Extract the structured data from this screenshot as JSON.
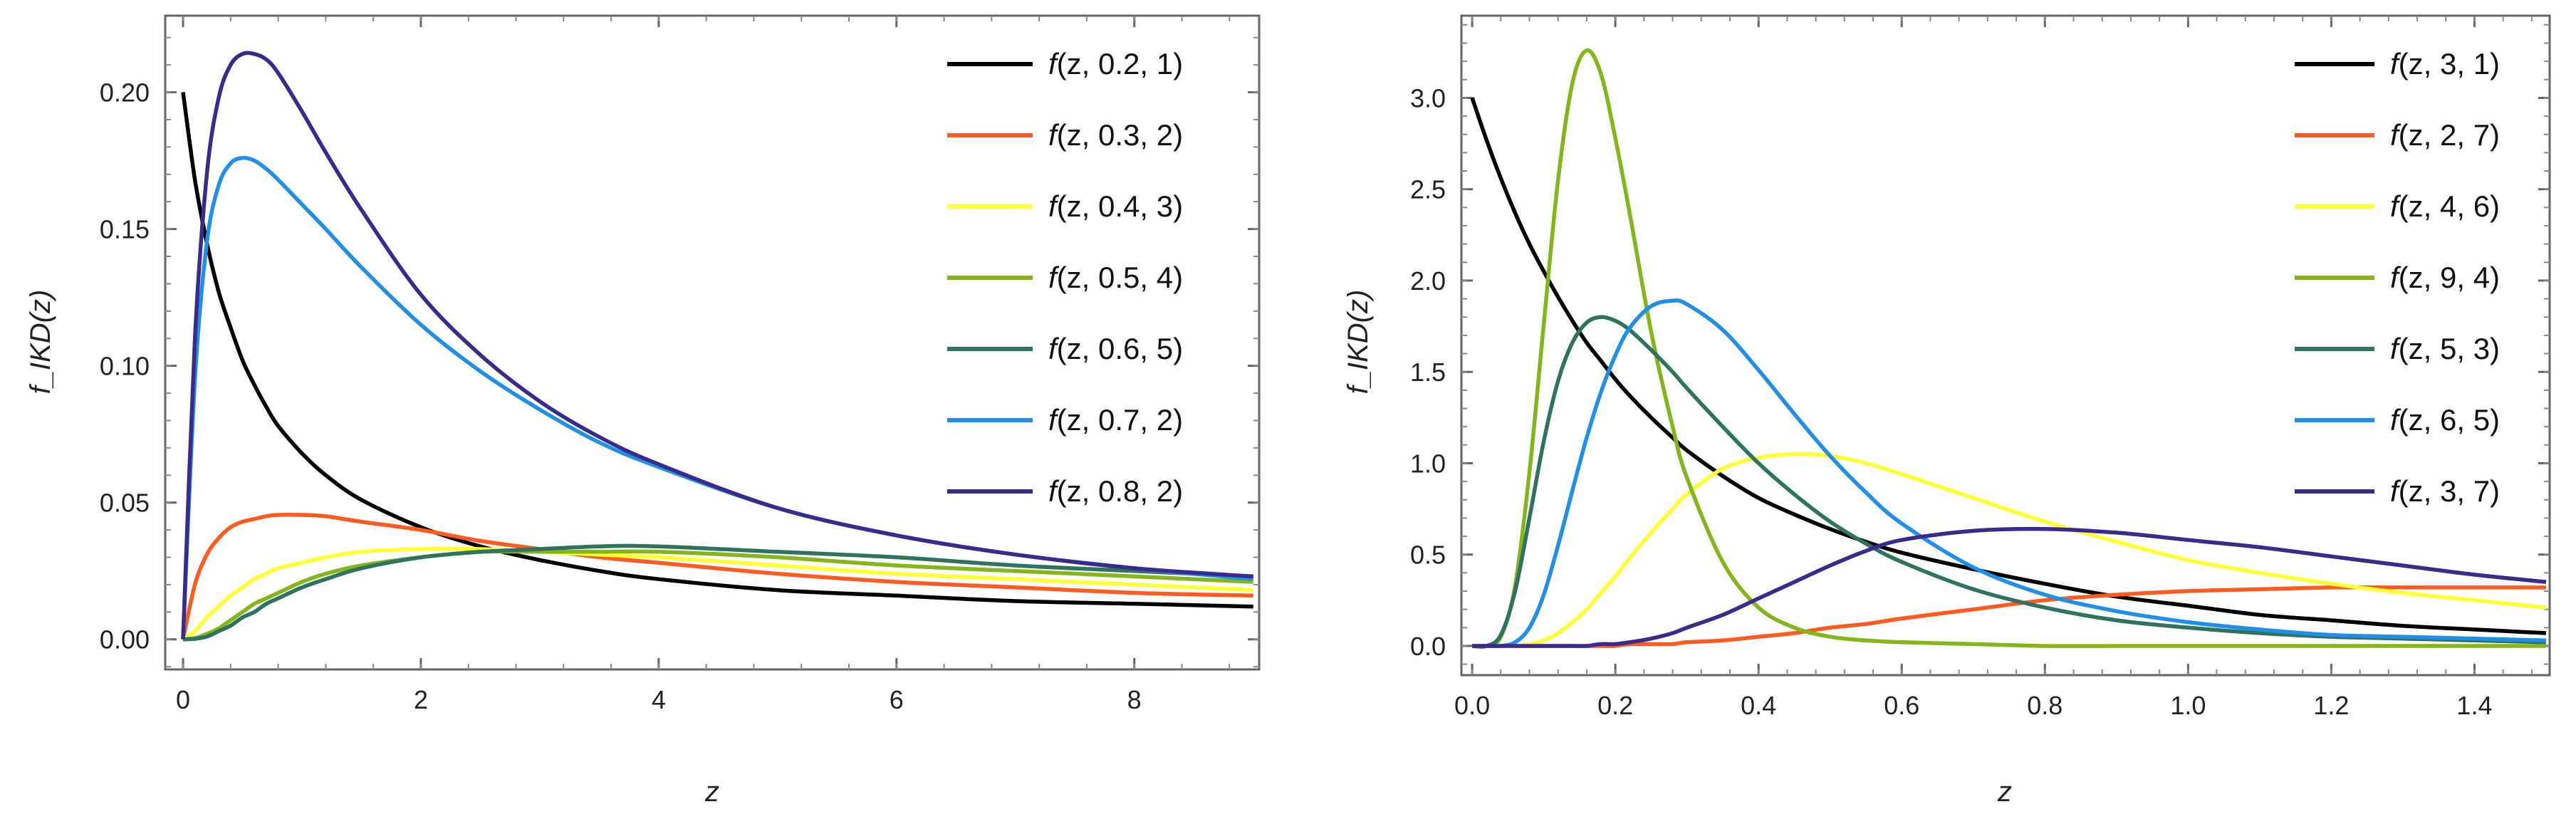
{
  "chart_data": [
    {
      "type": "line",
      "title": "",
      "xlabel": "z",
      "ylabel": "f_IKD(z)",
      "xlim": [
        -0.15,
        9.05
      ],
      "ylim": [
        -0.011,
        0.228
      ],
      "xticks": [
        0,
        2,
        4,
        6,
        8
      ],
      "xtick_labels": [
        "0",
        "2",
        "4",
        "6",
        "8"
      ],
      "yticks": [
        0.0,
        0.05,
        0.1,
        0.15,
        0.2
      ],
      "ytick_labels": [
        "0.00",
        "0.05",
        "0.10",
        "0.15",
        "0.20"
      ],
      "legend_position": "top-right",
      "x": [
        0,
        0.1,
        0.2,
        0.3,
        0.4,
        0.5,
        0.6,
        0.7,
        0.8,
        1.0,
        1.2,
        1.5,
        2.0,
        2.5,
        3.0,
        3.5,
        4.0,
        5.0,
        6.0,
        7.0,
        8.0,
        9.0
      ],
      "series": [
        {
          "name": "f(z, 0.2, 1)",
          "color": "#000000",
          "values": [
            0.2,
            0.168,
            0.145,
            0.127,
            0.114,
            0.102,
            0.093,
            0.085,
            0.078,
            0.068,
            0.06,
            0.051,
            0.041,
            0.034,
            0.029,
            0.025,
            0.022,
            0.018,
            0.016,
            0.014,
            0.013,
            0.012
          ]
        },
        {
          "name": "f(z, 0.3, 2)",
          "color": "#ff5a1f",
          "values": [
            0.0,
            0.02,
            0.031,
            0.037,
            0.041,
            0.043,
            0.044,
            0.045,
            0.0455,
            0.0455,
            0.045,
            0.043,
            0.04,
            0.036,
            0.033,
            0.03,
            0.028,
            0.024,
            0.021,
            0.019,
            0.017,
            0.016
          ]
        },
        {
          "name": "f(z, 0.4, 3)",
          "color": "#ffff33",
          "values": [
            0.0,
            0.003,
            0.008,
            0.012,
            0.016,
            0.019,
            0.022,
            0.024,
            0.026,
            0.028,
            0.03,
            0.032,
            0.033,
            0.033,
            0.032,
            0.031,
            0.03,
            0.027,
            0.024,
            0.022,
            0.02,
            0.018
          ]
        },
        {
          "name": "f(z, 0.5, 4)",
          "color": "#84b51a",
          "values": [
            0.0,
            0.0005,
            0.002,
            0.004,
            0.007,
            0.01,
            0.013,
            0.015,
            0.017,
            0.021,
            0.024,
            0.027,
            0.03,
            0.032,
            0.032,
            0.032,
            0.032,
            0.03,
            0.027,
            0.025,
            0.023,
            0.021
          ]
        },
        {
          "name": "f(z, 0.6, 5)",
          "color": "#2e7360",
          "values": [
            0.0,
            0.0002,
            0.001,
            0.003,
            0.005,
            0.008,
            0.01,
            0.013,
            0.015,
            0.019,
            0.022,
            0.026,
            0.03,
            0.032,
            0.033,
            0.034,
            0.034,
            0.032,
            0.03,
            0.027,
            0.025,
            0.023
          ]
        },
        {
          "name": "f(z, 0.7, 2)",
          "color": "#1f8fe8",
          "values": [
            0.0,
            0.095,
            0.145,
            0.166,
            0.174,
            0.176,
            0.175,
            0.172,
            0.168,
            0.159,
            0.15,
            0.136,
            0.115,
            0.098,
            0.084,
            0.072,
            0.063,
            0.048,
            0.038,
            0.031,
            0.026,
            0.022
          ]
        },
        {
          "name": "f(z, 0.8, 2)",
          "color": "#3a2a8c",
          "values": [
            0.0,
            0.11,
            0.17,
            0.198,
            0.21,
            0.214,
            0.214,
            0.212,
            0.207,
            0.193,
            0.178,
            0.157,
            0.126,
            0.104,
            0.087,
            0.074,
            0.064,
            0.048,
            0.038,
            0.031,
            0.026,
            0.023
          ]
        }
      ]
    },
    {
      "type": "line",
      "title": "",
      "xlabel": "z",
      "ylabel": "f_IKD(z)",
      "xlim": [
        -0.015,
        1.505
      ],
      "ylim": [
        -0.16,
        3.45
      ],
      "xticks": [
        0.0,
        0.2,
        0.4,
        0.6,
        0.8,
        1.0,
        1.2,
        1.4
      ],
      "xtick_labels": [
        "0.0",
        "0.2",
        "0.4",
        "0.6",
        "0.8",
        "1.0",
        "1.2",
        "1.4"
      ],
      "yticks": [
        0.0,
        0.5,
        1.0,
        1.5,
        2.0,
        2.5,
        3.0
      ],
      "ytick_labels": [
        "0.0",
        "0.5",
        "1.0",
        "1.5",
        "2.0",
        "2.5",
        "3.0"
      ],
      "legend_position": "top-right",
      "x": [
        0,
        0.02,
        0.04,
        0.06,
        0.08,
        0.1,
        0.12,
        0.14,
        0.16,
        0.18,
        0.2,
        0.22,
        0.25,
        0.28,
        0.3,
        0.35,
        0.4,
        0.45,
        0.5,
        0.55,
        0.6,
        0.7,
        0.8,
        0.9,
        1.0,
        1.1,
        1.2,
        1.3,
        1.4,
        1.5
      ],
      "series": [
        {
          "name": "f(z, 3, 1)",
          "color": "#000000",
          "values": [
            3.0,
            2.77,
            2.56,
            2.37,
            2.2,
            2.05,
            1.91,
            1.78,
            1.66,
            1.56,
            1.46,
            1.37,
            1.25,
            1.14,
            1.07,
            0.93,
            0.81,
            0.72,
            0.64,
            0.57,
            0.51,
            0.42,
            0.34,
            0.27,
            0.22,
            0.17,
            0.14,
            0.11,
            0.09,
            0.07
          ]
        },
        {
          "name": "f(z, 2, 7)",
          "color": "#ff5a1f",
          "values": [
            0.0,
            0.0,
            0.0,
            0.0,
            0.0,
            0.0,
            0.0,
            0.0,
            0.0,
            0.0,
            0.0,
            0.01,
            0.01,
            0.01,
            0.02,
            0.03,
            0.05,
            0.07,
            0.1,
            0.12,
            0.15,
            0.2,
            0.25,
            0.28,
            0.3,
            0.31,
            0.32,
            0.32,
            0.32,
            0.32
          ]
        },
        {
          "name": "f(z, 4, 6)",
          "color": "#ffff33",
          "values": [
            0.0,
            0.0,
            0.0,
            0.0,
            0.01,
            0.03,
            0.07,
            0.13,
            0.2,
            0.29,
            0.38,
            0.48,
            0.62,
            0.75,
            0.83,
            0.97,
            1.03,
            1.05,
            1.04,
            1.0,
            0.94,
            0.81,
            0.68,
            0.57,
            0.47,
            0.4,
            0.34,
            0.29,
            0.25,
            0.21
          ]
        },
        {
          "name": "f(z, 9, 4)",
          "color": "#84b51a",
          "values": [
            0.0,
            0.0,
            0.05,
            0.33,
            0.95,
            1.76,
            2.55,
            3.08,
            3.26,
            3.13,
            2.78,
            2.37,
            1.72,
            1.2,
            0.92,
            0.46,
            0.21,
            0.1,
            0.05,
            0.03,
            0.02,
            0.01,
            0.0,
            0.0,
            0.0,
            0.0,
            0.0,
            0.0,
            0.0,
            0.0
          ]
        },
        {
          "name": "f(z, 5, 3)",
          "color": "#2e7360",
          "values": [
            0.0,
            0.0,
            0.06,
            0.3,
            0.7,
            1.12,
            1.45,
            1.66,
            1.77,
            1.8,
            1.78,
            1.73,
            1.62,
            1.5,
            1.41,
            1.2,
            1.0,
            0.83,
            0.68,
            0.56,
            0.46,
            0.31,
            0.21,
            0.14,
            0.1,
            0.07,
            0.05,
            0.04,
            0.03,
            0.02
          ]
        },
        {
          "name": "f(z, 6, 5)",
          "color": "#1f8fe8",
          "values": [
            0.0,
            0.0,
            0.0,
            0.02,
            0.1,
            0.28,
            0.55,
            0.85,
            1.14,
            1.39,
            1.59,
            1.74,
            1.86,
            1.89,
            1.87,
            1.73,
            1.51,
            1.27,
            1.04,
            0.84,
            0.67,
            0.43,
            0.28,
            0.19,
            0.13,
            0.09,
            0.06,
            0.05,
            0.04,
            0.03
          ]
        },
        {
          "name": "f(z, 3, 7)",
          "color": "#3a2a8c",
          "values": [
            0.0,
            0.0,
            0.0,
            0.0,
            0.0,
            0.0,
            0.0,
            0.0,
            0.0,
            0.01,
            0.01,
            0.02,
            0.04,
            0.07,
            0.1,
            0.17,
            0.26,
            0.35,
            0.44,
            0.52,
            0.58,
            0.63,
            0.64,
            0.62,
            0.58,
            0.54,
            0.49,
            0.44,
            0.39,
            0.35
          ]
        }
      ]
    }
  ],
  "legends": [
    {
      "entries": [
        {
          "prefix": "f",
          "args": "(z, 0.2, 1)"
        },
        {
          "prefix": "f",
          "args": "(z, 0.3, 2)"
        },
        {
          "prefix": "f",
          "args": "(z, 0.4, 3)"
        },
        {
          "prefix": "f",
          "args": "(z, 0.5, 4)"
        },
        {
          "prefix": "f",
          "args": "(z, 0.6, 5)"
        },
        {
          "prefix": "f",
          "args": "(z, 0.7, 2)"
        },
        {
          "prefix": "f",
          "args": "(z, 0.8, 2)"
        }
      ]
    },
    {
      "entries": [
        {
          "prefix": "f",
          "args": "(z, 3, 1)"
        },
        {
          "prefix": "f",
          "args": "(z, 2, 7)"
        },
        {
          "prefix": "f",
          "args": "(z, 4, 6)"
        },
        {
          "prefix": "f",
          "args": "(z, 9, 4)"
        },
        {
          "prefix": "f",
          "args": "(z, 5, 3)"
        },
        {
          "prefix": "f",
          "args": "(z, 6, 5)"
        },
        {
          "prefix": "f",
          "args": "(z, 3, 7)"
        }
      ]
    }
  ]
}
